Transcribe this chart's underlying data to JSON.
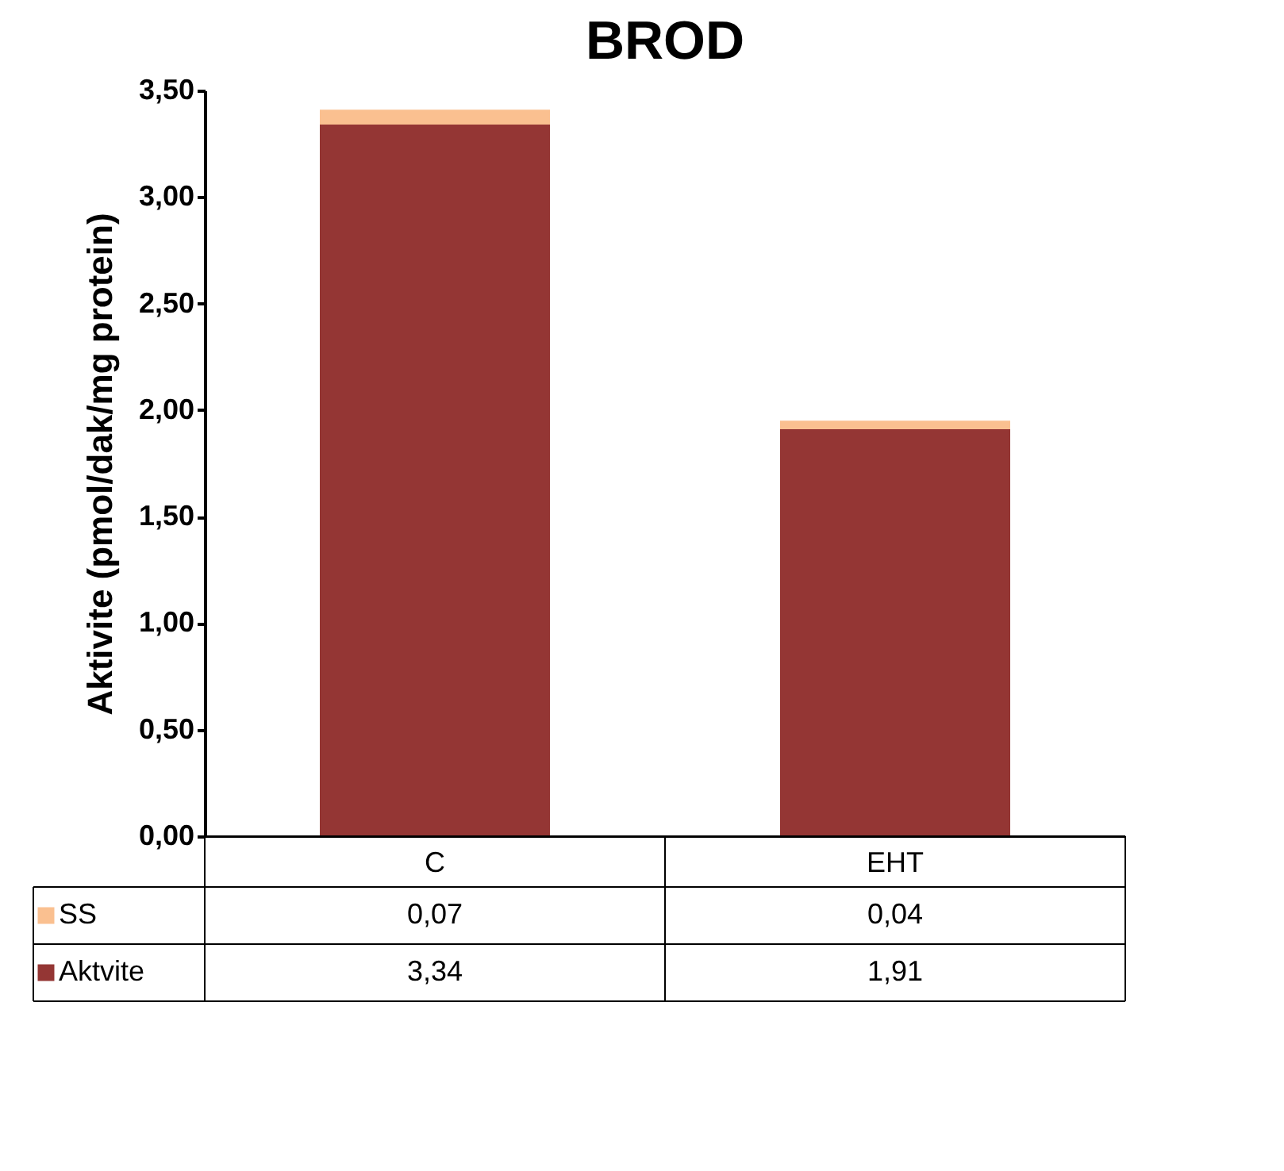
{
  "chart_data": {
    "type": "bar",
    "title": "BROD",
    "ylabel": "Aktivite (pmol/dak/mg protein)",
    "categories": [
      "C",
      "EHT"
    ],
    "stacked": true,
    "legend": "bottom",
    "ylim": [
      0,
      3.5
    ],
    "yticks": [
      {
        "value": 0,
        "label": "0,00"
      },
      {
        "value": 0.5,
        "label": "0,50"
      },
      {
        "value": 1,
        "label": "1,00"
      },
      {
        "value": 1.5,
        "label": "1,50"
      },
      {
        "value": 2,
        "label": "2,00"
      },
      {
        "value": 2.5,
        "label": "2,50"
      },
      {
        "value": 3,
        "label": "3,00"
      },
      {
        "value": 3.5,
        "label": "3,50"
      }
    ],
    "series": [
      {
        "name": "Aktvite",
        "color": "#943634",
        "values": [
          3.34,
          1.91
        ],
        "value_labels": [
          "3,34",
          "1,91"
        ]
      },
      {
        "name": "SS",
        "color": "#fac090",
        "values": [
          0.07,
          0.04
        ],
        "value_labels": [
          "0,07",
          "0,04"
        ]
      }
    ]
  }
}
